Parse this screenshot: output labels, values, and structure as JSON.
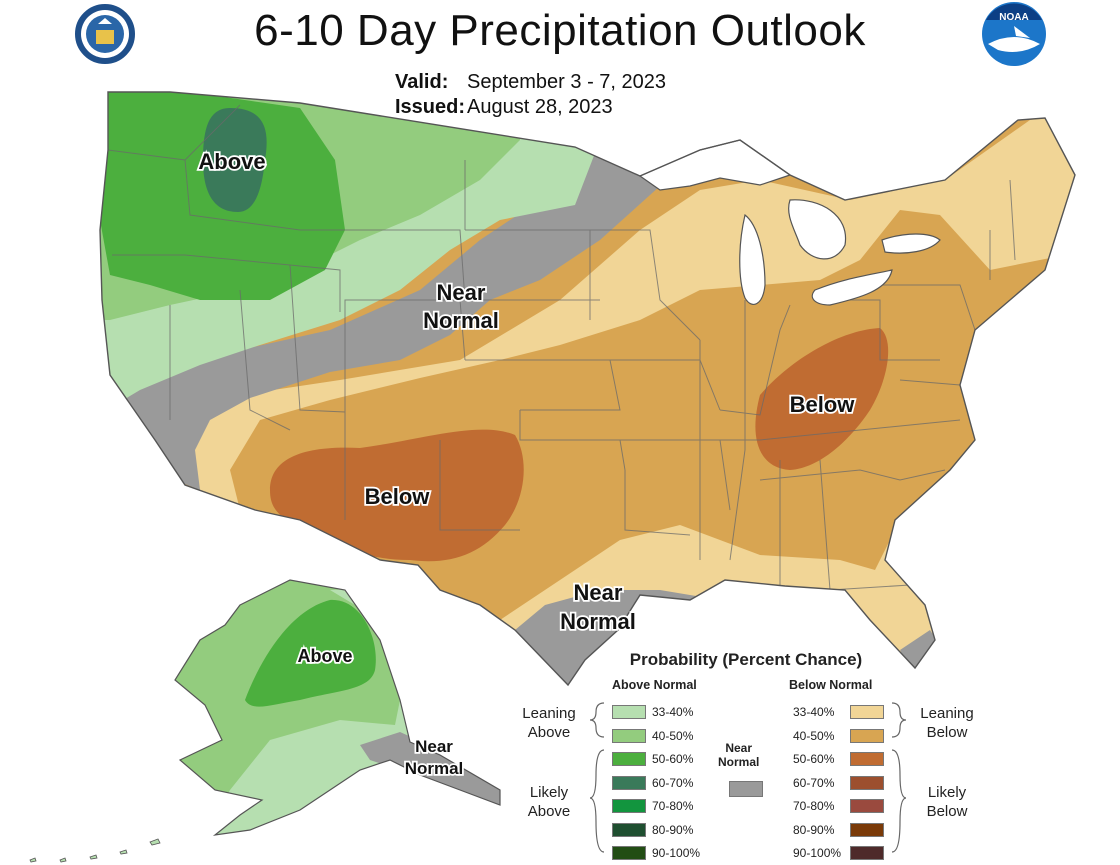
{
  "header": {
    "title": "6-10 Day Precipitation Outlook",
    "valid_label": "Valid:",
    "valid_value": "September 3 - 7, 2023",
    "issued_label": "Issued:",
    "issued_value": "August 28, 2023"
  },
  "logos": {
    "left": "doc-seal-icon",
    "right": "noaa-logo-icon"
  },
  "map_labels": {
    "northwest": "Above",
    "near_normal_plains_1": "Near",
    "near_normal_plains_2": "Normal",
    "southwest": "Below",
    "ohio_valley": "Below",
    "texas_1": "Near",
    "texas_2": "Normal",
    "alaska": "Above",
    "alaska_se_1": "Near",
    "alaska_se_2": "Normal"
  },
  "legend": {
    "title": "Probability (Percent Chance)",
    "above_header": "Above Normal",
    "below_header": "Below Normal",
    "leaning_above": [
      "Leaning",
      "Above"
    ],
    "likely_above": [
      "Likely",
      "Above"
    ],
    "leaning_below": [
      "Leaning",
      "Below"
    ],
    "likely_below": [
      "Likely",
      "Below"
    ],
    "near_normal": [
      "Near",
      "Normal"
    ],
    "near_normal_color": "#9a9a9a",
    "above": [
      {
        "range": "33-40%",
        "color": "#b6dfb0"
      },
      {
        "range": "40-50%",
        "color": "#93cc7e"
      },
      {
        "range": "50-60%",
        "color": "#4caf3e"
      },
      {
        "range": "60-70%",
        "color": "#3a7a5a"
      },
      {
        "range": "70-80%",
        "color": "#12953e"
      },
      {
        "range": "80-90%",
        "color": "#1f4f30"
      },
      {
        "range": "90-100%",
        "color": "#224d14"
      }
    ],
    "below": [
      {
        "range": "33-40%",
        "color": "#f1d596"
      },
      {
        "range": "40-50%",
        "color": "#d8a552"
      },
      {
        "range": "50-60%",
        "color": "#c06c32"
      },
      {
        "range": "60-70%",
        "color": "#9c4f2e"
      },
      {
        "range": "70-80%",
        "color": "#9a4a3e"
      },
      {
        "range": "80-90%",
        "color": "#7a3a08"
      },
      {
        "range": "90-100%",
        "color": "#4e2a2a"
      }
    ]
  }
}
